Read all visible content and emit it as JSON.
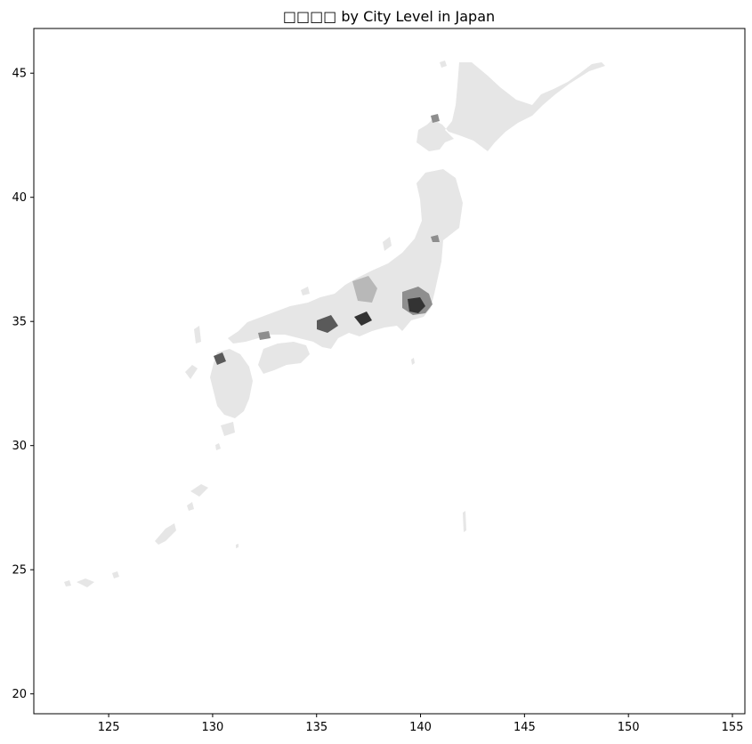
{
  "title": "□□□□ by City Level in Japan",
  "map": {
    "projection": "lon-lat",
    "xlim": [
      121.4,
      155.6
    ],
    "ylim": [
      19.2,
      46.8
    ],
    "x_ticks": [
      125,
      130,
      135,
      140,
      145,
      150,
      155
    ],
    "y_ticks": [
      20,
      25,
      30,
      35,
      40,
      45
    ],
    "base_fill": "#e6e6e6",
    "shade_colors": [
      "#d2d2d2",
      "#b8b8b8",
      "#8e8e8e",
      "#5a5a5a",
      "#333333"
    ],
    "legend": "none"
  }
}
